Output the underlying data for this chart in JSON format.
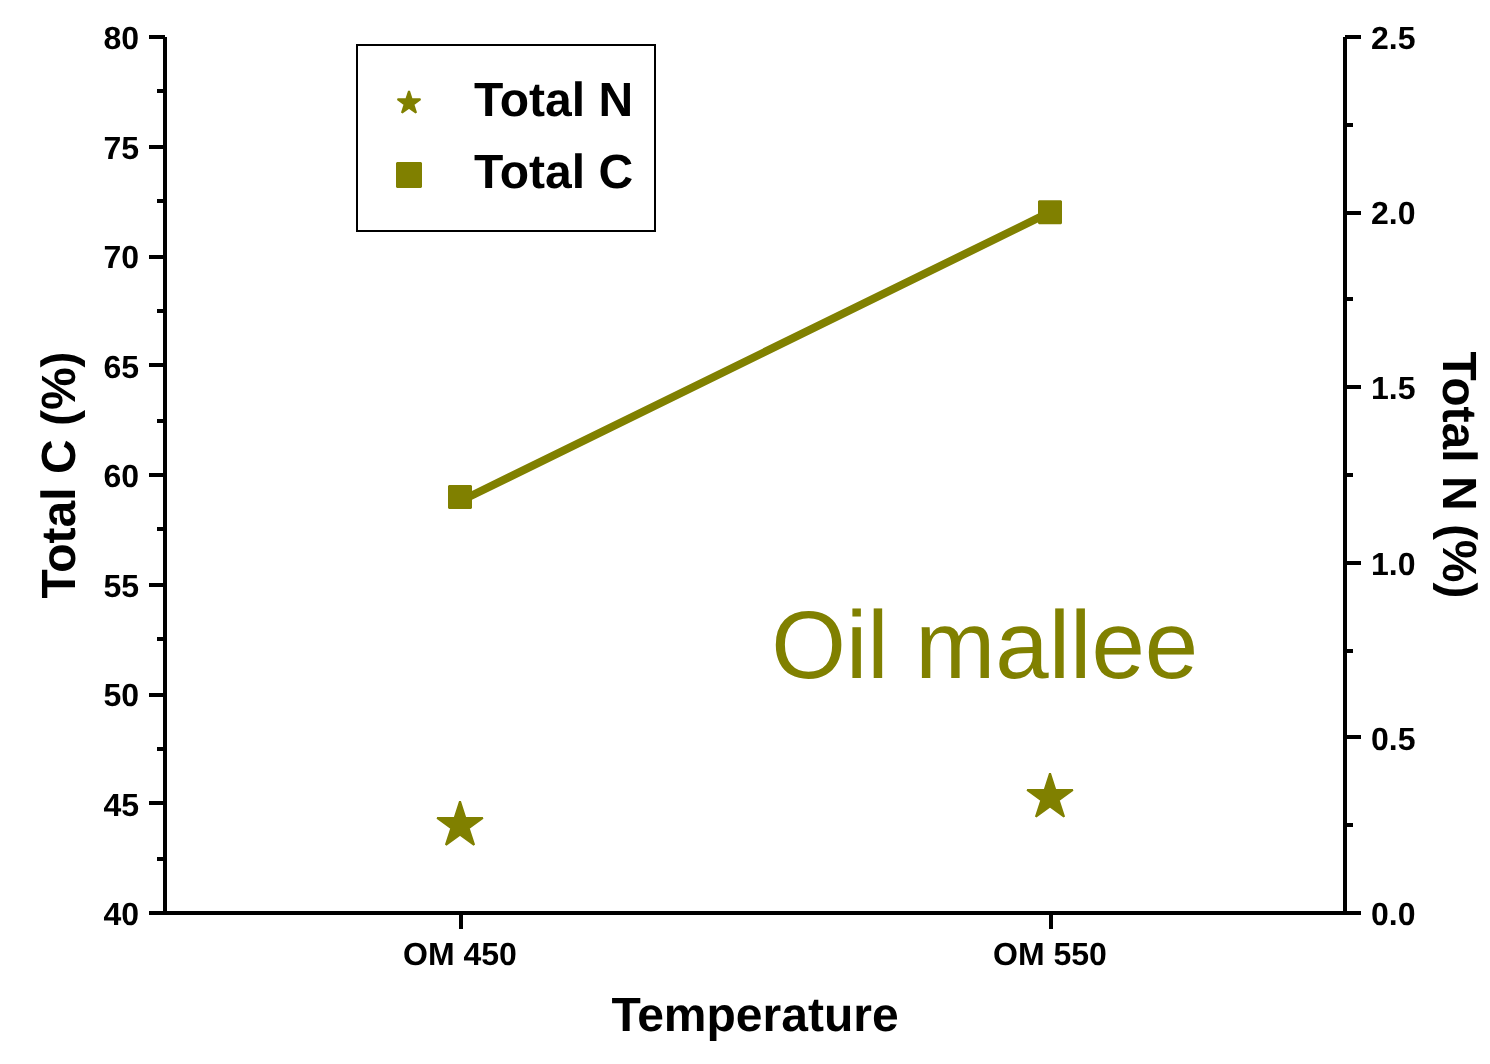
{
  "chart_data": {
    "type": "scatter",
    "xlabel": "Temperature",
    "ylabel": "Total C (%)",
    "y2label": "Total N (%)",
    "annotations": [
      "Oil mallee"
    ],
    "categories": [
      "OM 450",
      "OM 550"
    ],
    "ylim": [
      40,
      80
    ],
    "yticks": [
      40,
      45,
      50,
      55,
      60,
      65,
      70,
      75,
      80
    ],
    "y2lim": [
      0,
      2.5
    ],
    "y2ticks": [
      {
        "value": 0,
        "label": "0.0"
      },
      0.5,
      {
        "value": 1,
        "label": "1.0"
      },
      1.5,
      {
        "value": 2,
        "label": "2.0"
      },
      2.5
    ],
    "legend": "top left",
    "series": [
      {
        "type": "line",
        "color": "#808000",
        "line_style": "solid",
        "values": [
          58.8,
          72.0
        ]
      },
      {
        "name": "Total N",
        "marker": "star",
        "axis": "y2",
        "color": "#808000",
        "values": [
          0.25,
          0.33
        ]
      },
      {
        "name": "Total C",
        "marker": "square",
        "color": "#808000",
        "values": [
          59,
          72
        ]
      }
    ]
  }
}
